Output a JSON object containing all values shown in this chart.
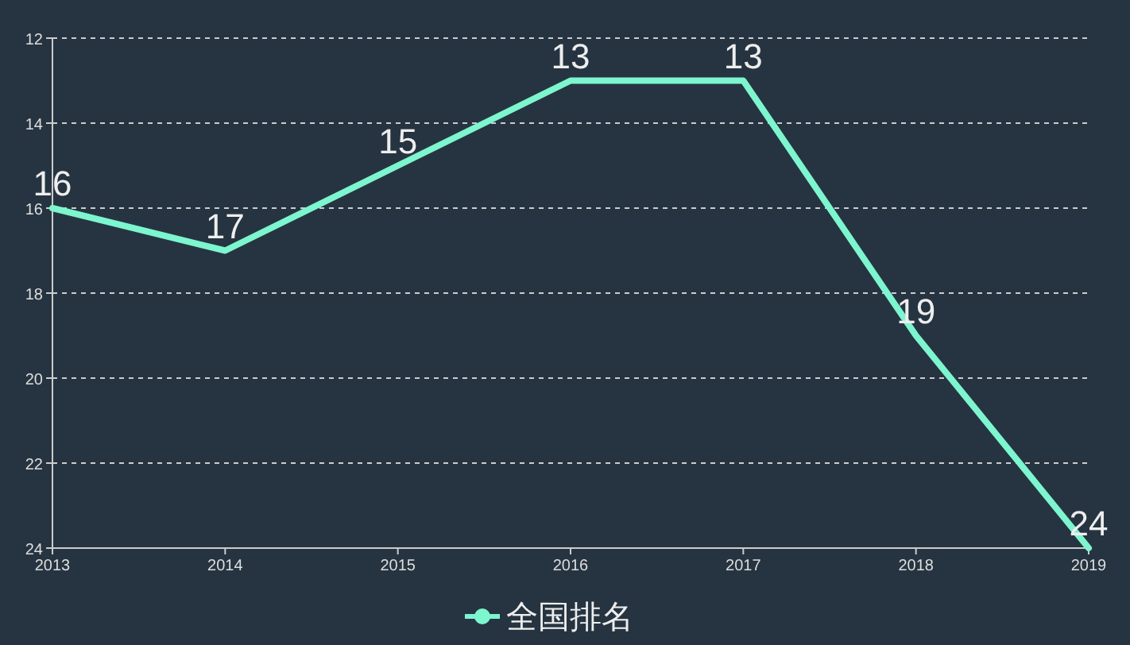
{
  "chart_data": {
    "type": "line",
    "categories": [
      "2013",
      "2014",
      "2015",
      "2016",
      "2017",
      "2018",
      "2019"
    ],
    "series": [
      {
        "name": "全国排名",
        "color": "#7df5cf",
        "values": [
          16,
          17,
          15,
          13,
          13,
          19,
          24
        ]
      }
    ],
    "ylim": [
      24,
      12
    ],
    "yticks": [
      12,
      14,
      16,
      18,
      20,
      22,
      24
    ],
    "grid": "y",
    "legend": "bottom",
    "data_labels": true,
    "line_style": "solid"
  }
}
